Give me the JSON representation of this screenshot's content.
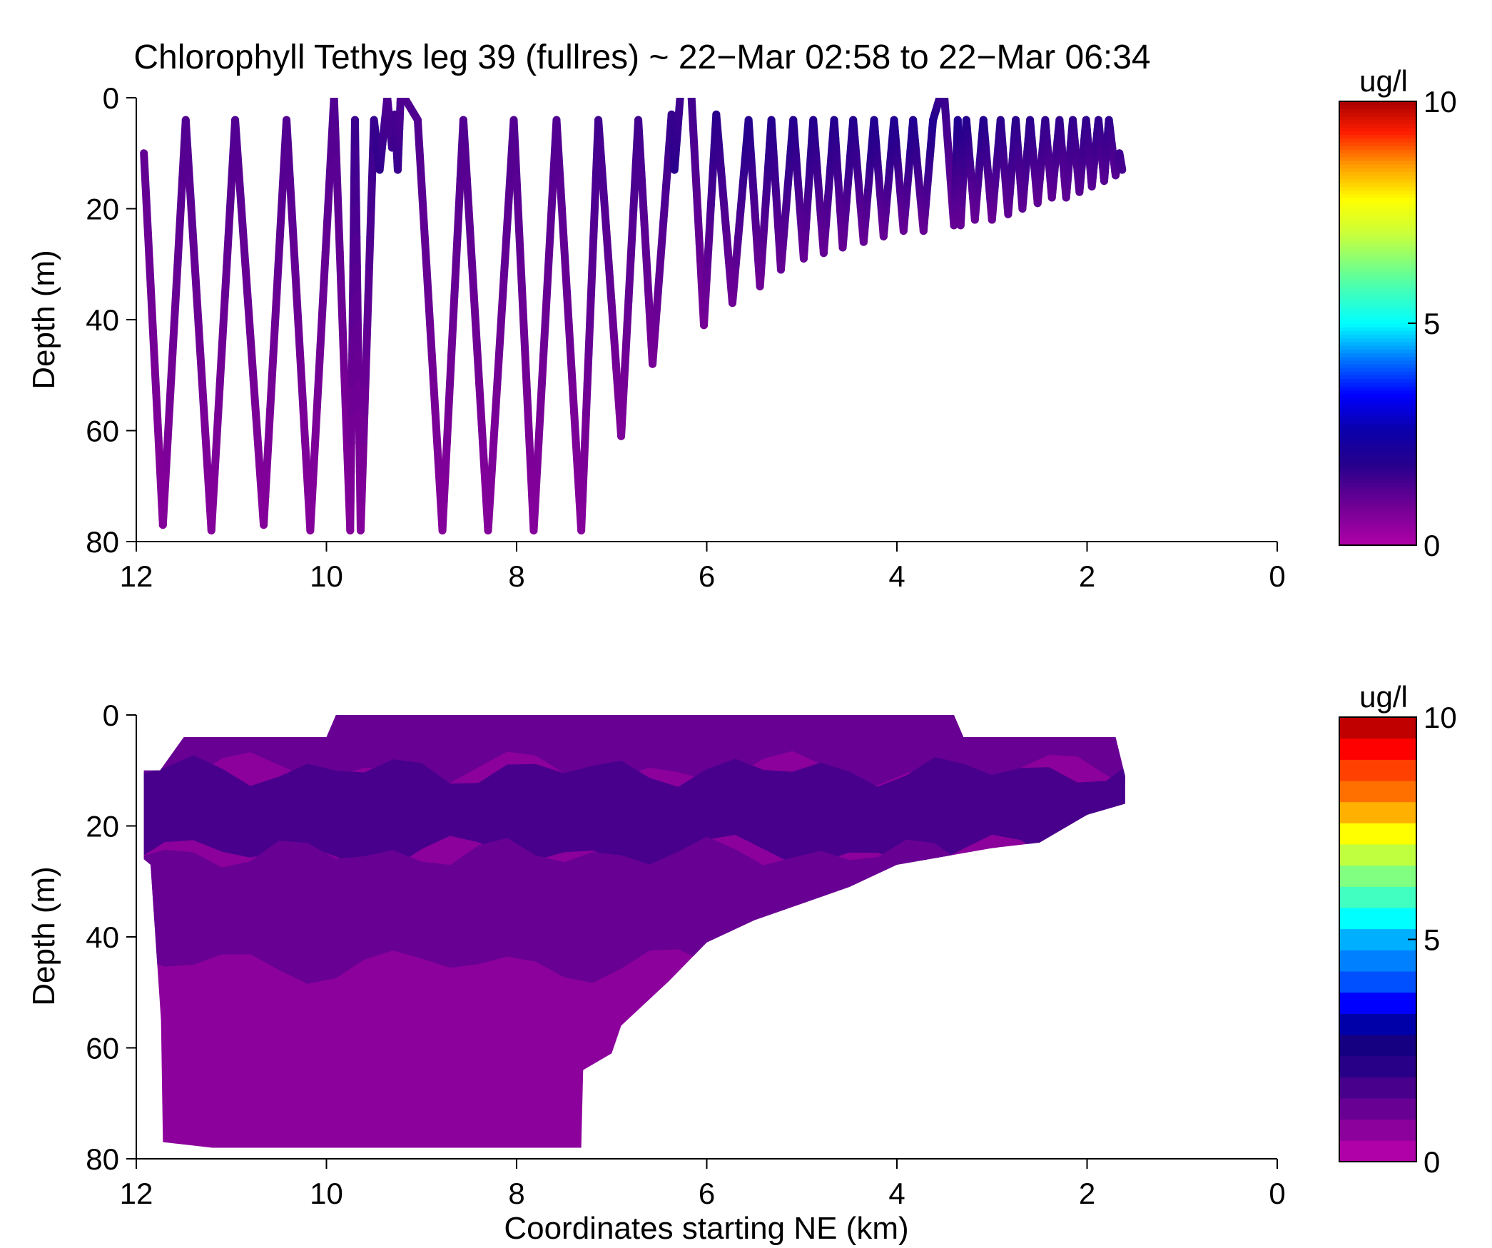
{
  "figure_title": "Chlorophyll Tethys leg 39 (fullres) ~ 22−Mar 02:58 to 22−Mar 06:34",
  "chart_data": [
    {
      "type": "line",
      "title": "Chlorophyll Tethys leg 39 (fullres) ~ 22−Mar 02:58 to 22−Mar 06:34",
      "xlabel": "",
      "ylabel": "Depth (m)",
      "xlim": [
        12,
        0
      ],
      "ylim": [
        0,
        80
      ],
      "y_reversed": true,
      "x_ticks": [
        "12",
        "10",
        "8",
        "6",
        "4",
        "2",
        "0"
      ],
      "y_ticks": [
        "0",
        "20",
        "40",
        "60",
        "80"
      ],
      "colorbar": {
        "label": "ug/l",
        "min": 0,
        "max": 10,
        "ticks": [
          "0",
          "5",
          "10"
        ],
        "colormap": [
          "#a000a0",
          "#6a0090",
          "#200090",
          "#0000ff",
          "#0090ff",
          "#00ffff",
          "#80ff80",
          "#ffff00",
          "#ff8000",
          "#ff0000",
          "#a00000"
        ]
      },
      "track": {
        "x": [
          11.92,
          11.72,
          11.48,
          11.21,
          10.96,
          10.66,
          10.42,
          10.17,
          9.92,
          9.75,
          9.7,
          9.64,
          9.5,
          9.44,
          9.36,
          9.31,
          9.28,
          9.25,
          9.22,
          9.18,
          9.04,
          8.78,
          8.56,
          8.3,
          8.03,
          7.82,
          7.58,
          7.32,
          7.14,
          6.9,
          6.72,
          6.57,
          6.37,
          6.34,
          6.28,
          6.16,
          6.03,
          5.9,
          5.73,
          5.56,
          5.44,
          5.32,
          5.22,
          5.09,
          4.98,
          4.88,
          4.77,
          4.66,
          4.57,
          4.46,
          4.35,
          4.24,
          4.14,
          4.03,
          3.93,
          3.83,
          3.72,
          3.62,
          3.55,
          3.5,
          3.4,
          3.36,
          3.33,
          3.27,
          3.18,
          3.09,
          3.0,
          2.91,
          2.83,
          2.75,
          2.68,
          2.6,
          2.52,
          2.44,
          2.37,
          2.29,
          2.22,
          2.15,
          2.08,
          2.01,
          1.95,
          1.88,
          1.82,
          1.77,
          1.7,
          1.66,
          1.63
        ],
        "depth": [
          10,
          77,
          4,
          78,
          4,
          77,
          4,
          78,
          0,
          78,
          4,
          78,
          4,
          13,
          0,
          9,
          3,
          13,
          0,
          0,
          4,
          78,
          4,
          78,
          4,
          78,
          4,
          78,
          4,
          61,
          4,
          48,
          3,
          13,
          0,
          0,
          41,
          3,
          37,
          4,
          34,
          4,
          31,
          4,
          29,
          4,
          28,
          4,
          27,
          4,
          26,
          4,
          25,
          4,
          24,
          4,
          24,
          4,
          0,
          0,
          23,
          4,
          23,
          4,
          22,
          4,
          22,
          4,
          21,
          4,
          20,
          4,
          19,
          4,
          18,
          4,
          18,
          4,
          17,
          4,
          16,
          4,
          15,
          4,
          14,
          10,
          13
        ],
        "value": [
          1.1,
          0.6,
          1.3,
          0.6,
          1.3,
          0.6,
          1.3,
          0.6,
          1.3,
          0.6,
          1.6,
          0.6,
          1.6,
          1.7,
          1.3,
          1.5,
          1.4,
          1.6,
          1.3,
          1.3,
          1.3,
          0.6,
          1.3,
          0.6,
          1.3,
          0.6,
          1.3,
          0.6,
          1.5,
          0.7,
          1.5,
          0.8,
          1.6,
          1.8,
          1.5,
          1.5,
          0.8,
          1.8,
          0.9,
          1.9,
          0.9,
          1.9,
          1.0,
          1.9,
          1.0,
          1.9,
          1.0,
          1.9,
          1.0,
          1.9,
          1.0,
          2.0,
          1.0,
          2.0,
          1.0,
          2.0,
          1.0,
          2.0,
          1.6,
          1.6,
          1.0,
          2.0,
          1.0,
          1.9,
          1.0,
          1.9,
          1.0,
          1.8,
          1.1,
          1.8,
          1.1,
          1.8,
          1.1,
          1.7,
          1.1,
          1.7,
          1.1,
          1.7,
          1.2,
          1.7,
          1.2,
          1.7,
          1.2,
          1.7,
          1.2,
          1.5,
          1.4
        ]
      }
    },
    {
      "type": "heatmap",
      "title": "",
      "xlabel": "Coordinates starting NE (km)",
      "ylabel": "Depth (m)",
      "xlim": [
        12,
        0
      ],
      "ylim": [
        0,
        80
      ],
      "y_reversed": true,
      "x_ticks": [
        "12",
        "10",
        "8",
        "6",
        "4",
        "2",
        "0"
      ],
      "y_ticks": [
        "0",
        "20",
        "40",
        "60",
        "80"
      ],
      "colorbar": {
        "label": "ug/l",
        "min": 0,
        "max": 10,
        "ticks": [
          "0",
          "5",
          "10"
        ],
        "levels": 20,
        "colors": [
          "#b000a8",
          "#8c009c",
          "#680094",
          "#48008c",
          "#280088",
          "#140080",
          "#0000a8",
          "#0000ff",
          "#0050ff",
          "#0080ff",
          "#00b0ff",
          "#00ffff",
          "#40ffc0",
          "#80ff80",
          "#c0ff40",
          "#ffff00",
          "#ffb000",
          "#ff7000",
          "#ff4000",
          "#ff0000",
          "#c00000"
        ]
      },
      "coverage_outline": [
        [
          11.92,
          10
        ],
        [
          11.75,
          10
        ],
        [
          11.5,
          4
        ],
        [
          10.0,
          4
        ],
        [
          9.9,
          0
        ],
        [
          3.4,
          0
        ],
        [
          3.3,
          4
        ],
        [
          1.7,
          4
        ],
        [
          1.6,
          11
        ],
        [
          1.6,
          16
        ],
        [
          2.0,
          18
        ],
        [
          2.5,
          23
        ],
        [
          3.0,
          24
        ],
        [
          4.0,
          27
        ],
        [
          4.5,
          31
        ],
        [
          5.0,
          34
        ],
        [
          5.5,
          37
        ],
        [
          6.0,
          41
        ],
        [
          6.4,
          48
        ],
        [
          6.9,
          56
        ],
        [
          7.0,
          61
        ],
        [
          7.3,
          64
        ],
        [
          7.32,
          78
        ],
        [
          11.2,
          78
        ],
        [
          11.72,
          77
        ],
        [
          11.74,
          55
        ],
        [
          11.85,
          27
        ],
        [
          11.92,
          26
        ]
      ],
      "value_bands": [
        {
          "depth_range": [
            0,
            10
          ],
          "typical_value": 1.0
        },
        {
          "depth_range": [
            10,
            25
          ],
          "typical_value": 1.6
        },
        {
          "depth_range": [
            25,
            45
          ],
          "typical_value": 1.0
        },
        {
          "depth_range": [
            45,
            80
          ],
          "typical_value": 0.3
        }
      ]
    }
  ]
}
